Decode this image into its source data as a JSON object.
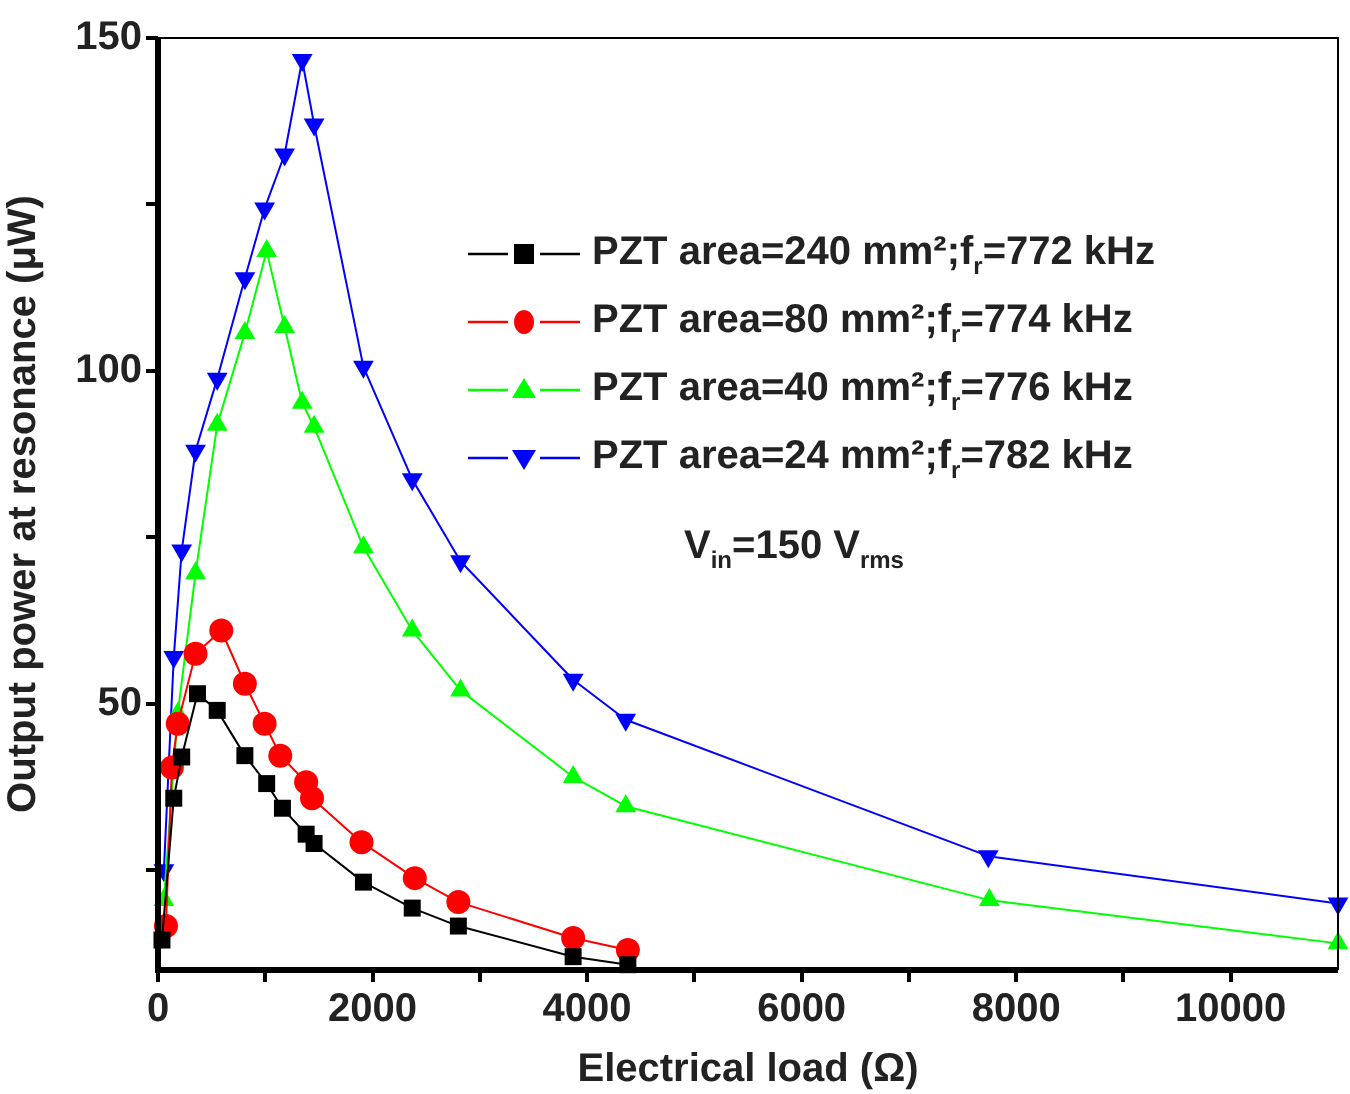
{
  "chart_data": {
    "type": "line",
    "xlabel": "Electrical load (Ω)",
    "ylabel": "Output power at resonance (μW)",
    "xlim": [
      0,
      11000
    ],
    "xticks": [
      0,
      {
        "value": 1000,
        "label": null
      },
      2000,
      {
        "value": 3000,
        "label": null
      },
      4000,
      {
        "value": 5000,
        "label": null
      },
      6000,
      {
        "value": 7000,
        "label": null
      },
      8000,
      {
        "value": 9000,
        "label": null
      },
      10000
    ],
    "ylim": [
      10,
      150
    ],
    "yticks": [
      {
        "value": 25,
        "label": null
      },
      50,
      {
        "value": 75,
        "label": null
      },
      100,
      {
        "value": 125,
        "label": null
      },
      150
    ],
    "grid": false,
    "legend": "top right",
    "line_style": "solid",
    "annotations": [
      "V$_{in}$=150 V$_{rms}$"
    ],
    "series": [
      {
        "name": "PZT area=240 mm²;f$_{r}$=772 kHz",
        "color": "#000000",
        "marker": "square",
        "x": [
          37,
          147,
          221,
          368,
          552,
          810,
          1013,
          1160,
          1381,
          1455,
          1915,
          2370,
          2800,
          3870,
          4380
        ],
        "values": [
          14.5,
          35.8,
          42,
          51.5,
          49,
          42.2,
          38,
          34.3,
          30.4,
          29,
          23.2,
          19.3,
          16.6,
          12,
          10.8
        ]
      },
      {
        "name": "PZT area=80 mm²;f$_{r}$=774 kHz",
        "color": "#ff0000",
        "marker": "circle",
        "x": [
          74,
          129,
          184,
          350,
          590,
          810,
          994,
          1140,
          1381,
          1436,
          1897,
          2394,
          2800,
          3870,
          4380
        ],
        "values": [
          16.6,
          40.4,
          47,
          57.5,
          61,
          53,
          47,
          42.2,
          38.2,
          35.8,
          29.2,
          23.8,
          20.2,
          14.8,
          13
        ]
      },
      {
        "name": "PZT area=40 mm²;f$_{r}$=776 kHz",
        "color": "#00ff00",
        "marker": "triangle",
        "x": [
          55,
          184,
          350,
          552,
          810,
          1013,
          1180,
          1344,
          1455,
          1915,
          2370,
          2820,
          3870,
          4360,
          7750,
          11000
        ],
        "values": [
          20.5,
          48.5,
          69.6,
          91.9,
          105.7,
          118,
          106.6,
          95.2,
          91.6,
          73.5,
          61,
          52,
          39,
          34.6,
          20.5,
          14
        ]
      },
      {
        "name": "PZT area=24 mm²;f$_{r}$=782 kHz",
        "color": "#0000ff",
        "marker": "triangle-down",
        "x": [
          55,
          147,
          221,
          350,
          552,
          810,
          994,
          1180,
          1344,
          1455,
          1915,
          2370,
          2820,
          3870,
          4360,
          7740,
          11000
        ],
        "values": [
          25,
          57,
          73,
          88,
          98.8,
          113.9,
          124.4,
          132.5,
          146.7,
          137,
          100.6,
          83.7,
          71.4,
          53.6,
          47.6,
          27.1,
          20
        ]
      }
    ]
  }
}
